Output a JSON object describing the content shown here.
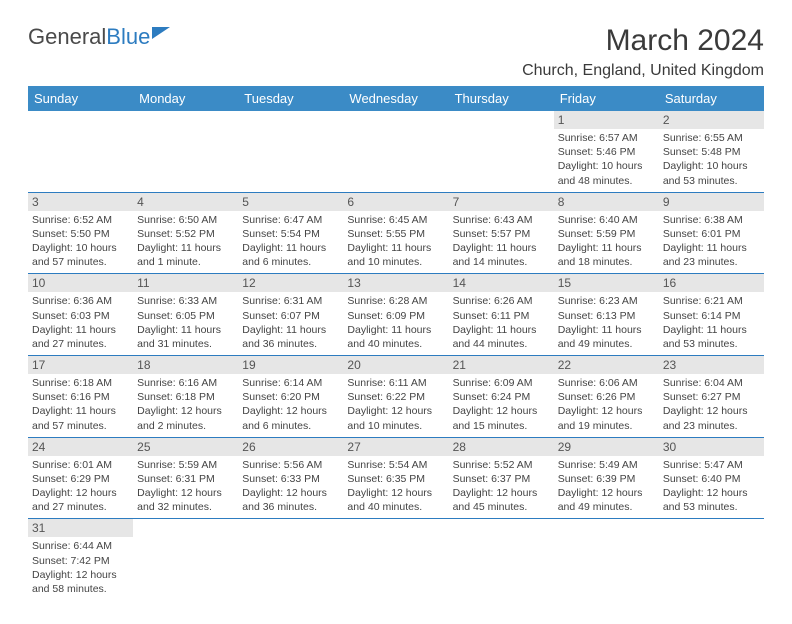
{
  "logo": {
    "part1": "General",
    "part2": "Blue"
  },
  "title": "March 2024",
  "location": "Church, England, United Kingdom",
  "colors": {
    "header_bg": "#3b8bc6",
    "header_text": "#ffffff",
    "daynum_bg": "#e6e6e6",
    "divider": "#2d7cc0",
    "text": "#444444",
    "title_text": "#3a3a3a"
  },
  "typography": {
    "title_fontsize": 30,
    "location_fontsize": 16,
    "dayheader_fontsize": 13,
    "cell_fontsize": 10.5
  },
  "day_headers": [
    "Sunday",
    "Monday",
    "Tuesday",
    "Wednesday",
    "Thursday",
    "Friday",
    "Saturday"
  ],
  "weeks": [
    [
      {
        "empty": true
      },
      {
        "empty": true
      },
      {
        "empty": true
      },
      {
        "empty": true
      },
      {
        "empty": true
      },
      {
        "day": "1",
        "sunrise": "Sunrise: 6:57 AM",
        "sunset": "Sunset: 5:46 PM",
        "daylight1": "Daylight: 10 hours",
        "daylight2": "and 48 minutes."
      },
      {
        "day": "2",
        "sunrise": "Sunrise: 6:55 AM",
        "sunset": "Sunset: 5:48 PM",
        "daylight1": "Daylight: 10 hours",
        "daylight2": "and 53 minutes."
      }
    ],
    [
      {
        "day": "3",
        "sunrise": "Sunrise: 6:52 AM",
        "sunset": "Sunset: 5:50 PM",
        "daylight1": "Daylight: 10 hours",
        "daylight2": "and 57 minutes."
      },
      {
        "day": "4",
        "sunrise": "Sunrise: 6:50 AM",
        "sunset": "Sunset: 5:52 PM",
        "daylight1": "Daylight: 11 hours",
        "daylight2": "and 1 minute."
      },
      {
        "day": "5",
        "sunrise": "Sunrise: 6:47 AM",
        "sunset": "Sunset: 5:54 PM",
        "daylight1": "Daylight: 11 hours",
        "daylight2": "and 6 minutes."
      },
      {
        "day": "6",
        "sunrise": "Sunrise: 6:45 AM",
        "sunset": "Sunset: 5:55 PM",
        "daylight1": "Daylight: 11 hours",
        "daylight2": "and 10 minutes."
      },
      {
        "day": "7",
        "sunrise": "Sunrise: 6:43 AM",
        "sunset": "Sunset: 5:57 PM",
        "daylight1": "Daylight: 11 hours",
        "daylight2": "and 14 minutes."
      },
      {
        "day": "8",
        "sunrise": "Sunrise: 6:40 AM",
        "sunset": "Sunset: 5:59 PM",
        "daylight1": "Daylight: 11 hours",
        "daylight2": "and 18 minutes."
      },
      {
        "day": "9",
        "sunrise": "Sunrise: 6:38 AM",
        "sunset": "Sunset: 6:01 PM",
        "daylight1": "Daylight: 11 hours",
        "daylight2": "and 23 minutes."
      }
    ],
    [
      {
        "day": "10",
        "sunrise": "Sunrise: 6:36 AM",
        "sunset": "Sunset: 6:03 PM",
        "daylight1": "Daylight: 11 hours",
        "daylight2": "and 27 minutes."
      },
      {
        "day": "11",
        "sunrise": "Sunrise: 6:33 AM",
        "sunset": "Sunset: 6:05 PM",
        "daylight1": "Daylight: 11 hours",
        "daylight2": "and 31 minutes."
      },
      {
        "day": "12",
        "sunrise": "Sunrise: 6:31 AM",
        "sunset": "Sunset: 6:07 PM",
        "daylight1": "Daylight: 11 hours",
        "daylight2": "and 36 minutes."
      },
      {
        "day": "13",
        "sunrise": "Sunrise: 6:28 AM",
        "sunset": "Sunset: 6:09 PM",
        "daylight1": "Daylight: 11 hours",
        "daylight2": "and 40 minutes."
      },
      {
        "day": "14",
        "sunrise": "Sunrise: 6:26 AM",
        "sunset": "Sunset: 6:11 PM",
        "daylight1": "Daylight: 11 hours",
        "daylight2": "and 44 minutes."
      },
      {
        "day": "15",
        "sunrise": "Sunrise: 6:23 AM",
        "sunset": "Sunset: 6:13 PM",
        "daylight1": "Daylight: 11 hours",
        "daylight2": "and 49 minutes."
      },
      {
        "day": "16",
        "sunrise": "Sunrise: 6:21 AM",
        "sunset": "Sunset: 6:14 PM",
        "daylight1": "Daylight: 11 hours",
        "daylight2": "and 53 minutes."
      }
    ],
    [
      {
        "day": "17",
        "sunrise": "Sunrise: 6:18 AM",
        "sunset": "Sunset: 6:16 PM",
        "daylight1": "Daylight: 11 hours",
        "daylight2": "and 57 minutes."
      },
      {
        "day": "18",
        "sunrise": "Sunrise: 6:16 AM",
        "sunset": "Sunset: 6:18 PM",
        "daylight1": "Daylight: 12 hours",
        "daylight2": "and 2 minutes."
      },
      {
        "day": "19",
        "sunrise": "Sunrise: 6:14 AM",
        "sunset": "Sunset: 6:20 PM",
        "daylight1": "Daylight: 12 hours",
        "daylight2": "and 6 minutes."
      },
      {
        "day": "20",
        "sunrise": "Sunrise: 6:11 AM",
        "sunset": "Sunset: 6:22 PM",
        "daylight1": "Daylight: 12 hours",
        "daylight2": "and 10 minutes."
      },
      {
        "day": "21",
        "sunrise": "Sunrise: 6:09 AM",
        "sunset": "Sunset: 6:24 PM",
        "daylight1": "Daylight: 12 hours",
        "daylight2": "and 15 minutes."
      },
      {
        "day": "22",
        "sunrise": "Sunrise: 6:06 AM",
        "sunset": "Sunset: 6:26 PM",
        "daylight1": "Daylight: 12 hours",
        "daylight2": "and 19 minutes."
      },
      {
        "day": "23",
        "sunrise": "Sunrise: 6:04 AM",
        "sunset": "Sunset: 6:27 PM",
        "daylight1": "Daylight: 12 hours",
        "daylight2": "and 23 minutes."
      }
    ],
    [
      {
        "day": "24",
        "sunrise": "Sunrise: 6:01 AM",
        "sunset": "Sunset: 6:29 PM",
        "daylight1": "Daylight: 12 hours",
        "daylight2": "and 27 minutes."
      },
      {
        "day": "25",
        "sunrise": "Sunrise: 5:59 AM",
        "sunset": "Sunset: 6:31 PM",
        "daylight1": "Daylight: 12 hours",
        "daylight2": "and 32 minutes."
      },
      {
        "day": "26",
        "sunrise": "Sunrise: 5:56 AM",
        "sunset": "Sunset: 6:33 PM",
        "daylight1": "Daylight: 12 hours",
        "daylight2": "and 36 minutes."
      },
      {
        "day": "27",
        "sunrise": "Sunrise: 5:54 AM",
        "sunset": "Sunset: 6:35 PM",
        "daylight1": "Daylight: 12 hours",
        "daylight2": "and 40 minutes."
      },
      {
        "day": "28",
        "sunrise": "Sunrise: 5:52 AM",
        "sunset": "Sunset: 6:37 PM",
        "daylight1": "Daylight: 12 hours",
        "daylight2": "and 45 minutes."
      },
      {
        "day": "29",
        "sunrise": "Sunrise: 5:49 AM",
        "sunset": "Sunset: 6:39 PM",
        "daylight1": "Daylight: 12 hours",
        "daylight2": "and 49 minutes."
      },
      {
        "day": "30",
        "sunrise": "Sunrise: 5:47 AM",
        "sunset": "Sunset: 6:40 PM",
        "daylight1": "Daylight: 12 hours",
        "daylight2": "and 53 minutes."
      }
    ],
    [
      {
        "day": "31",
        "sunrise": "Sunrise: 6:44 AM",
        "sunset": "Sunset: 7:42 PM",
        "daylight1": "Daylight: 12 hours",
        "daylight2": "and 58 minutes."
      },
      {
        "empty": true
      },
      {
        "empty": true
      },
      {
        "empty": true
      },
      {
        "empty": true
      },
      {
        "empty": true
      },
      {
        "empty": true
      }
    ]
  ]
}
